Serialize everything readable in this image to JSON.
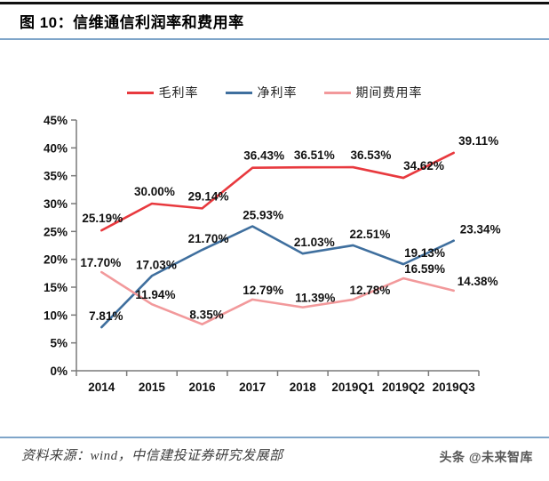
{
  "figure": {
    "title": "图 10：信维通信利润率和费用率",
    "source": "资料来源：wind，中信建投证券研究发展部",
    "watermark": "头条 @未来智库"
  },
  "chart_data": {
    "type": "line",
    "title": "信维通信利润率和费用率",
    "categories": [
      "2014",
      "2015",
      "2016",
      "2017",
      "2018",
      "2019Q1",
      "2019Q2",
      "2019Q3"
    ],
    "series": [
      {
        "name": "毛利率",
        "color": "#e8393e",
        "values": [
          25.19,
          30.0,
          29.14,
          36.43,
          36.51,
          36.53,
          34.62,
          39.11
        ]
      },
      {
        "name": "净利率",
        "color": "#3f6f9e",
        "values": [
          7.81,
          17.03,
          21.7,
          25.93,
          21.03,
          22.51,
          19.13,
          23.34
        ]
      },
      {
        "name": "期间费用率",
        "color": "#f2999b",
        "values": [
          17.7,
          11.94,
          8.35,
          12.79,
          11.39,
          12.78,
          16.59,
          14.38
        ]
      }
    ],
    "xlabel": "",
    "ylabel": "",
    "ylim": [
      0,
      45
    ],
    "ytick_step": 5,
    "ytick_labels": [
      "0%",
      "5%",
      "10%",
      "15%",
      "20%",
      "25%",
      "30%",
      "35%",
      "40%",
      "45%"
    ],
    "data_labels": true,
    "data_label_format": "0.00%",
    "legend_position": "top",
    "grid": false
  }
}
